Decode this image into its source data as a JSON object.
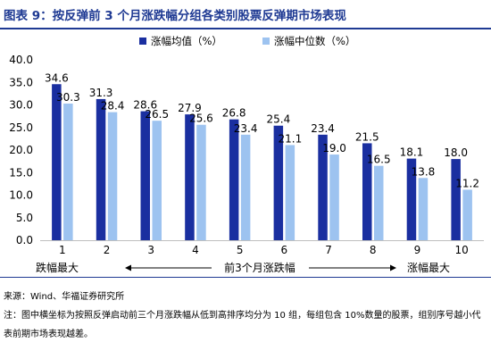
{
  "title": "图表 9：按反弹前 3 个月涨跌幅分组各类别股票反弹期市场表现",
  "chart_data": {
    "type": "bar",
    "categories": [
      "1",
      "2",
      "3",
      "4",
      "5",
      "6",
      "7",
      "8",
      "9",
      "10"
    ],
    "series": [
      {
        "name": "涨幅均值（%）",
        "color": "#1a2fa0",
        "values": [
          34.6,
          31.3,
          28.6,
          27.9,
          26.8,
          25.4,
          23.4,
          21.5,
          18.1,
          18.0
        ],
        "labels": [
          "34.6",
          "31.3",
          "28.6",
          "27.9",
          "26.8",
          "25.4",
          "23.4",
          "21.5",
          "18.1",
          "18.0"
        ]
      },
      {
        "name": "涨幅中位数（%）",
        "color": "#9dc3f0",
        "values": [
          30.3,
          28.4,
          26.5,
          25.6,
          23.4,
          21.1,
          19.0,
          16.5,
          13.8,
          11.2
        ],
        "labels": [
          "30.3",
          "28.4",
          "26.5",
          "25.6",
          "23.4",
          "21.1",
          "19.0",
          "16.5",
          "13.8",
          "11.2"
        ]
      }
    ],
    "ylim": [
      0,
      40
    ],
    "yticks": [
      "0.0",
      "5.0",
      "10.0",
      "15.0",
      "20.0",
      "25.0",
      "30.0",
      "35.0",
      "40.0"
    ],
    "legend_position": "top-center",
    "grid": false
  },
  "annotation": {
    "left": "跌幅最大",
    "middle": "前3个月涨跌幅",
    "right": "涨幅最大"
  },
  "source": "来源：Wind、华福证券研究所",
  "note": "注：图中横坐标为按照反弹启动前三个月涨跌幅从低到高排序均分为 10 组，每组包含 10%数量的股票，组别序号越小代表前期市场表现越差。"
}
